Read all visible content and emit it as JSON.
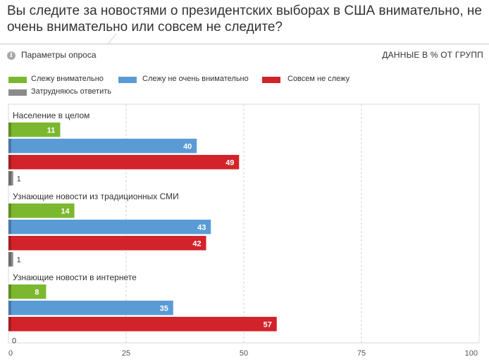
{
  "title": "Вы следите за новостями о президентских выборах в США внимательно, не очень внимательно или совсем не следите?",
  "params": {
    "icon": "info-icon",
    "label": "Параметры опроса",
    "units": "ДАННЫЕ В % ОТ ГРУПП"
  },
  "colors": {
    "green": "#7cb82f",
    "blue": "#5a9bd5",
    "red": "#d2232a",
    "gray": "#8a8a8a"
  },
  "chart_data": {
    "type": "bar",
    "orientation": "horizontal",
    "xlim": [
      0,
      100
    ],
    "x_ticks": [
      "0",
      "25",
      "50",
      "75",
      "100"
    ],
    "grid": true,
    "legend_position": "top",
    "series": [
      {
        "name": "Слежу внимательно",
        "color": "#7cb82f",
        "values": [
          11,
          14,
          8
        ]
      },
      {
        "name": "Слежу не очень внимательно",
        "color": "#5a9bd5",
        "values": [
          40,
          43,
          35
        ]
      },
      {
        "name": "Совсем не слежу",
        "color": "#d2232a",
        "values": [
          49,
          42,
          57
        ]
      },
      {
        "name": "Затрудняюсь ответить",
        "color": "#8a8a8a",
        "values": [
          1,
          1,
          0
        ]
      }
    ],
    "categories": [
      "Население в целом",
      "Узнающие новости из традиционных СМИ",
      "Узнающие новости в интернете"
    ]
  }
}
